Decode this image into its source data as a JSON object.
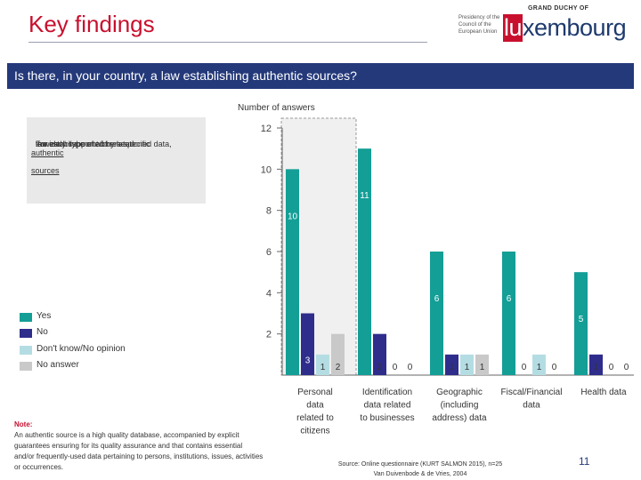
{
  "header": {
    "title": "Key findings",
    "logo_presidency": "Presidency of the Council of the European Union",
    "logo_grand_duchy": "GRAND DUCHY OF",
    "logo_prefix": "lu",
    "logo_suffix": "xembourg"
  },
  "banner": {
    "question": "Is there, in your country, a law establishing authentic sources?"
  },
  "note_box": {
    "line1": "For each type of aforementioned data,",
    "line2_pre": "the establishment of related ",
    "line2_u": "authentic",
    "line3_u": "sources",
    "line3_post": " is widely supported by a specific",
    "line4": "law."
  },
  "footnote": {
    "heading": "Note:",
    "text": "An authentic source is a high quality database, accompanied by explicit guarantees ensuring for its quality assurance and that contains essential and/or frequently-used data pertaining to persons, institutions, issues, activities or occurrences."
  },
  "source": {
    "line1": "Source: Online questionnaire (KURT SALMON 2015), n=25",
    "line2": "Van Duivenbode & de Vries, 2004"
  },
  "page_number": "11",
  "colors": {
    "yes": "#139e96",
    "no": "#2e2d8c",
    "dk": "#b4dde3",
    "na": "#c9c9c9",
    "title": "#c8102e",
    "banner": "#24397a",
    "highlight": "#f0f0f0"
  },
  "chart_data": {
    "type": "bar",
    "title": "",
    "ylabel": "Number of answers",
    "xlabel": "",
    "ylim": [
      0,
      12
    ],
    "yticks": [
      2,
      4,
      6,
      8,
      10,
      12
    ],
    "grid": false,
    "legend_position": "left",
    "highlighted_category": "Personal data related to citizens",
    "categories": [
      "Personal data related to citizens",
      "Identification data related to businesses",
      "Geographic (including address) data",
      "Fiscal/Financial data",
      "Health data"
    ],
    "category_lines": [
      [
        "Personal",
        "data",
        "related to",
        "citizens"
      ],
      [
        "Identification",
        "data related",
        "to businesses"
      ],
      [
        "Geographic",
        "(including",
        "address) data"
      ],
      [
        "Fiscal/Financial",
        "data"
      ],
      [
        "Health data"
      ]
    ],
    "series": [
      {
        "name": "Yes",
        "values": [
          10,
          11,
          6,
          6,
          5
        ]
      },
      {
        "name": "No",
        "values": [
          3,
          2,
          1,
          0,
          1
        ]
      },
      {
        "name": "Don't know/No opinion",
        "values": [
          1,
          0,
          1,
          1,
          0
        ]
      },
      {
        "name": "No answer",
        "values": [
          2,
          0,
          1,
          0,
          0
        ]
      }
    ]
  }
}
